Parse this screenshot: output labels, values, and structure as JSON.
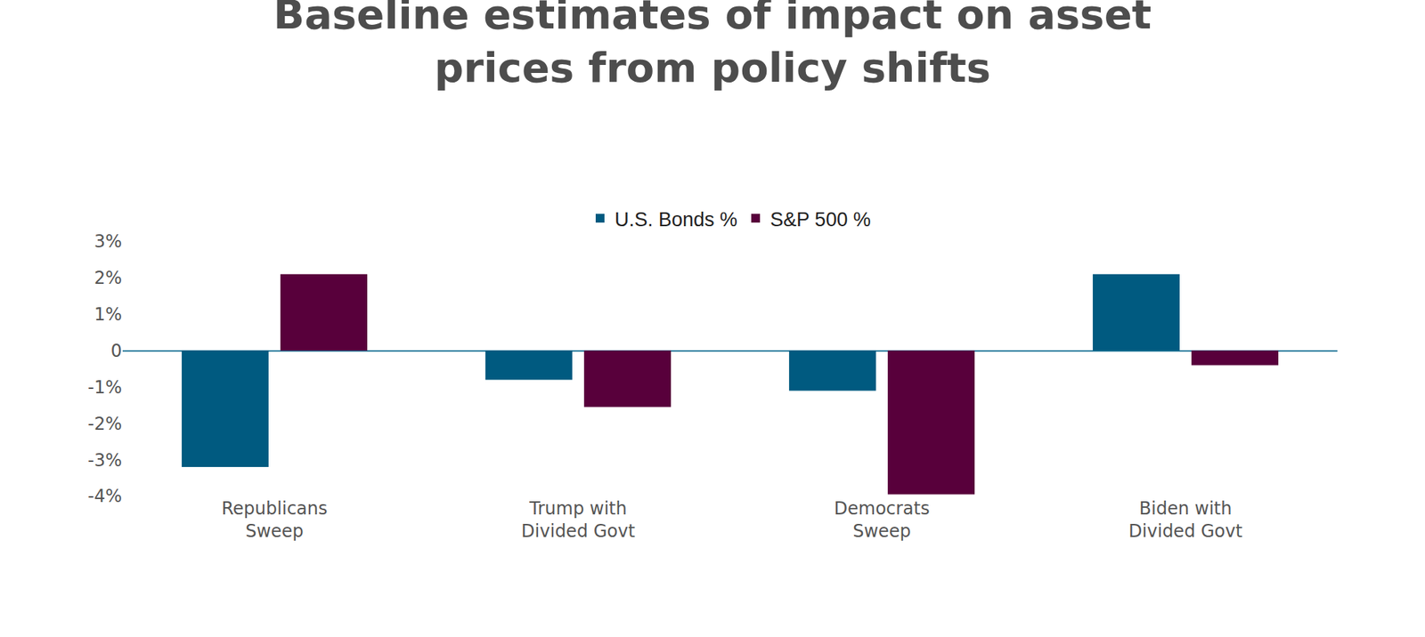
{
  "chart_data": {
    "type": "bar",
    "title": "Baseline estimates of impact on asset prices from policy shifts",
    "categories": [
      "Republicans Sweep",
      "Trump with Divided Govt",
      "Democrats Sweep",
      "Biden with Divided Govt"
    ],
    "series": [
      {
        "name": "U.S. Bonds %",
        "color": "#005a80",
        "values": [
          -3.2,
          -0.8,
          -1.1,
          2.1
        ]
      },
      {
        "name": "S&P 500 %",
        "color": "#58003b",
        "values": [
          2.1,
          -1.55,
          -3.95,
          -0.4
        ]
      }
    ],
    "ylim": [
      -4,
      3
    ],
    "yticks": [
      {
        "value": -4,
        "label": "-4%"
      },
      {
        "value": -3,
        "label": "-3%"
      },
      {
        "value": -2,
        "label": "-2%"
      },
      {
        "value": -1,
        "label": "-1%"
      },
      0,
      {
        "value": 1,
        "label": "1%"
      },
      {
        "value": 2,
        "label": "2%"
      },
      {
        "value": 3,
        "label": "3%"
      }
    ],
    "grid": false,
    "legend": "top"
  }
}
